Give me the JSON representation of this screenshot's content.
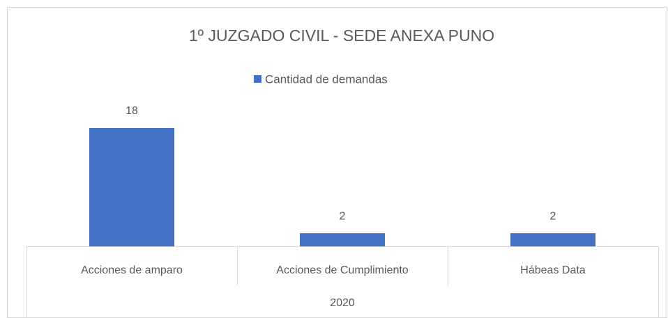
{
  "chart_data": {
    "type": "bar",
    "title": "1º JUZGADO CIVIL - SEDE ANEXA PUNO",
    "series": [
      {
        "name": "Cantidad de demandas",
        "color": "#4472c4",
        "values": [
          18,
          2,
          2
        ]
      }
    ],
    "categories": [
      "Acciones de amparo",
      "Acciones de Cumplimiento",
      "Hábeas Data"
    ],
    "group_label": "2020",
    "legend": "top",
    "grid": false
  }
}
